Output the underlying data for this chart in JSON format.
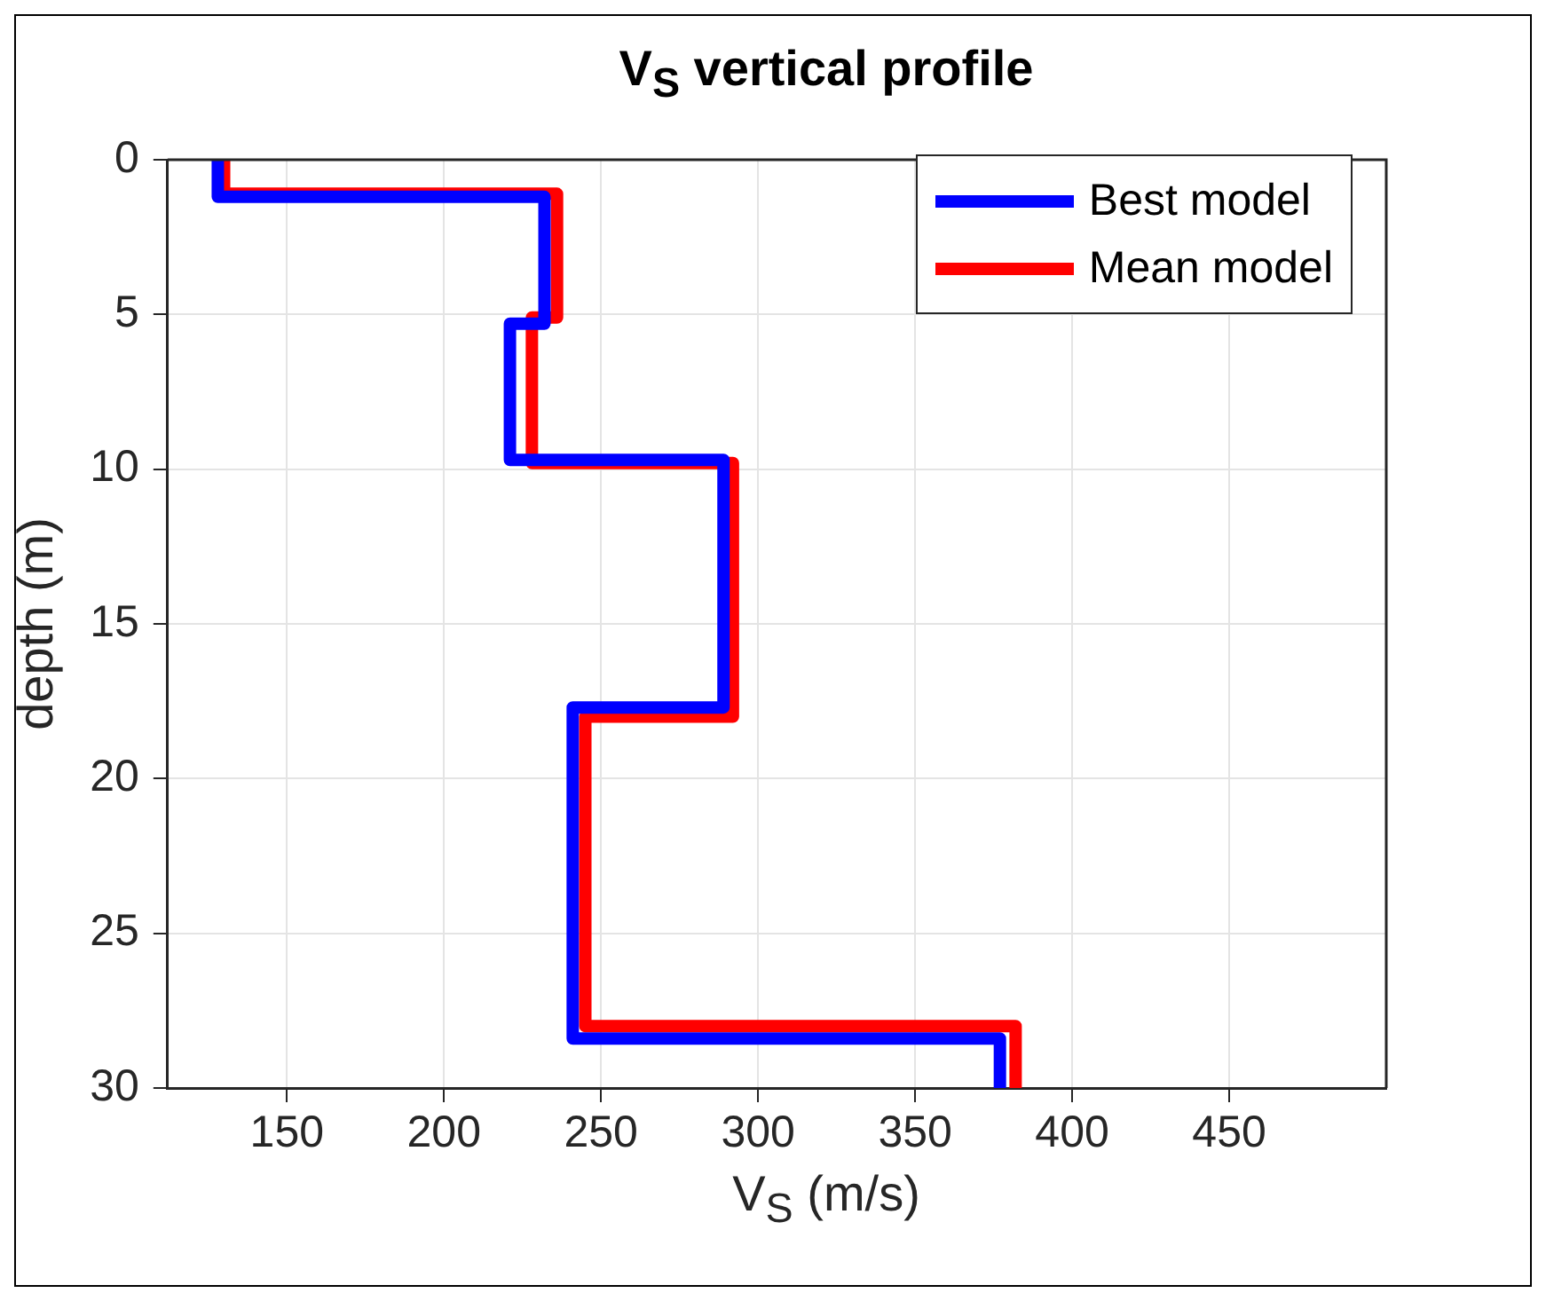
{
  "chart_data": {
    "type": "line",
    "title": "V$_{S}$ vertical profile",
    "xlabel": "V$_{S}$ (m/s)",
    "ylabel": "depth (m)",
    "series": [
      {
        "name": "Best model",
        "color": "#0000ff",
        "x": [
          128,
          128,
          232,
          232,
          221,
          221,
          289,
          289,
          241,
          241,
          377,
          377
        ],
        "values": [
          0,
          1.2,
          1.2,
          5.3,
          5.3,
          9.7,
          9.7,
          17.7,
          17.7,
          28.4,
          28.4,
          30
        ]
      },
      {
        "name": "Mean model",
        "color": "#ff0000",
        "x": [
          130,
          130,
          236,
          236,
          228,
          228,
          292,
          292,
          245,
          245,
          382,
          382
        ],
        "values": [
          0,
          1.1,
          1.1,
          5.1,
          5.1,
          9.8,
          9.8,
          18.0,
          18.0,
          28.0,
          28.0,
          30
        ]
      }
    ],
    "xlim": [
      112,
      500
    ],
    "xticks": [
      150,
      200,
      250,
      300,
      350,
      400,
      450
    ],
    "ylim": [
      30,
      0
    ],
    "yticks": [
      0,
      5,
      10,
      15,
      20,
      25,
      30
    ],
    "grid": true,
    "legend": "top right",
    "marker": "none",
    "line_style": "solid"
  }
}
